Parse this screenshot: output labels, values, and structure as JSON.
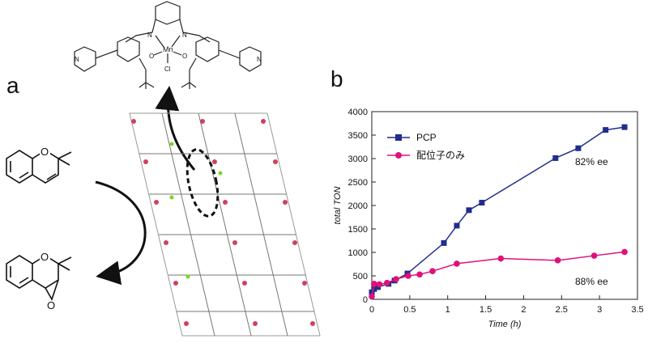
{
  "figure": {
    "panel_a_label": "a",
    "panel_b_label": "b",
    "catalyst": {
      "metal": "Mn",
      "axial_ligand": "Cl",
      "imine_n": "N",
      "phenoxide_o": "O",
      "pyridine_n": "N"
    },
    "substrate": {
      "ring_o": "O"
    },
    "product": {
      "ring_o": "O",
      "epoxide_o": "O"
    }
  },
  "chart_data": {
    "type": "line",
    "xlabel": "Time (h)",
    "ylabel": "total TON",
    "xlim": [
      0,
      3.5
    ],
    "ylim": [
      0,
      4000
    ],
    "xticks": [
      "0",
      "0.5",
      "1",
      "1.5",
      "2",
      "2.5",
      "3",
      "3.5"
    ],
    "yticks": [
      "0",
      "500",
      "1000",
      "1500",
      "2000",
      "2500",
      "3000",
      "3500",
      "4000"
    ],
    "grid": false,
    "legend_position": "top-left",
    "series": [
      {
        "name": "PCP",
        "color": "#1f2d8c",
        "marker": "square",
        "x": [
          0,
          0.03,
          0.08,
          0.22,
          0.3,
          0.47,
          0.95,
          1.12,
          1.28,
          1.45,
          2.42,
          2.72,
          3.08,
          3.33
        ],
        "y": [
          150,
          220,
          260,
          330,
          400,
          550,
          1200,
          1570,
          1900,
          2060,
          3010,
          3220,
          3610,
          3670
        ]
      },
      {
        "name": "配位子のみ",
        "color": "#e0107b",
        "marker": "circle",
        "x": [
          0,
          0.03,
          0.1,
          0.2,
          0.32,
          0.48,
          0.63,
          0.8,
          1.12,
          1.7,
          2.45,
          2.93,
          3.33
        ],
        "y": [
          60,
          330,
          320,
          350,
          430,
          500,
          530,
          600,
          760,
          870,
          830,
          930,
          1010
        ]
      }
    ],
    "annotations": [
      "82% ee",
      "88% ee"
    ]
  }
}
